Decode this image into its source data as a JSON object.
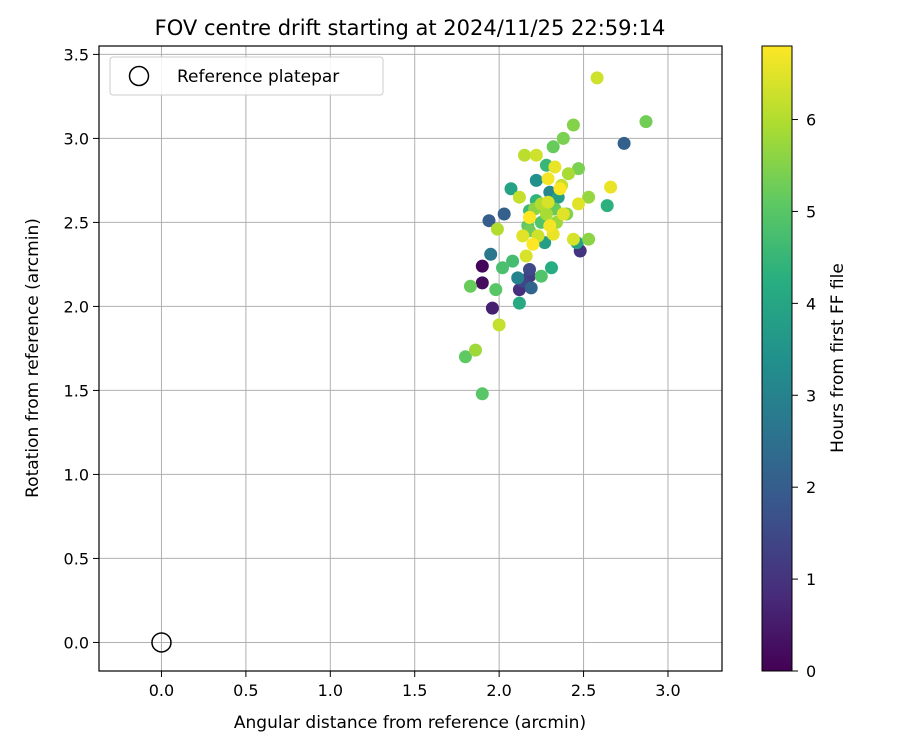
{
  "chart_data": {
    "type": "scatter",
    "title": "FOV centre drift starting at 2024/11/25 22:59:14",
    "xlabel": "Angular distance from reference (arcmin)",
    "ylabel": "Rotation from reference (arcmin)",
    "xlim": [
      -0.37,
      3.32
    ],
    "ylim": [
      -0.17,
      3.55
    ],
    "xticks": [
      "0.0",
      "0.5",
      "1.0",
      "1.5",
      "2.0",
      "2.5",
      "3.0"
    ],
    "yticks": [
      "0.0",
      "0.5",
      "1.0",
      "1.5",
      "2.0",
      "2.5",
      "3.0",
      "3.5"
    ],
    "grid": true,
    "colormap": "viridis",
    "colorbar": {
      "label": "Hours from first FF file",
      "range": [
        0,
        6.8
      ],
      "ticks": [
        "0",
        "1",
        "2",
        "3",
        "4",
        "5",
        "6"
      ]
    },
    "legend": {
      "placement": "top-left",
      "entries": [
        {
          "name": "Reference platepar",
          "marker": "hollow-circle"
        }
      ]
    },
    "reference_point": {
      "x": 0.0,
      "y": 0.0
    },
    "points": [
      {
        "x": 1.9,
        "y": 2.24,
        "c": 0.1
      },
      {
        "x": 1.9,
        "y": 2.14,
        "c": 0.2
      },
      {
        "x": 1.96,
        "y": 1.99,
        "c": 0.6
      },
      {
        "x": 2.12,
        "y": 2.1,
        "c": 0.9
      },
      {
        "x": 2.18,
        "y": 2.18,
        "c": 1.2
      },
      {
        "x": 2.48,
        "y": 2.33,
        "c": 1.0
      },
      {
        "x": 2.18,
        "y": 2.22,
        "c": 1.5
      },
      {
        "x": 2.14,
        "y": 2.15,
        "c": 1.4
      },
      {
        "x": 1.94,
        "y": 2.51,
        "c": 2.0
      },
      {
        "x": 2.03,
        "y": 2.55,
        "c": 2.1
      },
      {
        "x": 2.74,
        "y": 2.97,
        "c": 2.1
      },
      {
        "x": 1.95,
        "y": 2.31,
        "c": 2.7
      },
      {
        "x": 2.19,
        "y": 2.11,
        "c": 2.2
      },
      {
        "x": 2.11,
        "y": 2.17,
        "c": 3.0
      },
      {
        "x": 2.22,
        "y": 2.75,
        "c": 3.4
      },
      {
        "x": 2.3,
        "y": 2.68,
        "c": 3.1
      },
      {
        "x": 2.26,
        "y": 2.6,
        "c": 3.6
      },
      {
        "x": 2.35,
        "y": 2.65,
        "c": 3.8
      },
      {
        "x": 2.07,
        "y": 2.7,
        "c": 3.9
      },
      {
        "x": 2.12,
        "y": 2.02,
        "c": 4.1
      },
      {
        "x": 2.27,
        "y": 2.38,
        "c": 3.8
      },
      {
        "x": 2.31,
        "y": 2.23,
        "c": 4.2
      },
      {
        "x": 2.46,
        "y": 2.38,
        "c": 3.9
      },
      {
        "x": 2.64,
        "y": 2.6,
        "c": 4.3
      },
      {
        "x": 2.22,
        "y": 2.63,
        "c": 4.4
      },
      {
        "x": 2.28,
        "y": 2.84,
        "c": 4.5
      },
      {
        "x": 2.18,
        "y": 2.57,
        "c": 4.6
      },
      {
        "x": 2.08,
        "y": 2.27,
        "c": 4.7
      },
      {
        "x": 2.02,
        "y": 2.23,
        "c": 4.8
      },
      {
        "x": 2.25,
        "y": 2.18,
        "c": 4.9
      },
      {
        "x": 1.9,
        "y": 1.48,
        "c": 5.0
      },
      {
        "x": 1.8,
        "y": 1.7,
        "c": 5.1
      },
      {
        "x": 1.83,
        "y": 2.12,
        "c": 5.2
      },
      {
        "x": 1.98,
        "y": 2.1,
        "c": 5.0
      },
      {
        "x": 2.18,
        "y": 2.45,
        "c": 5.3
      },
      {
        "x": 2.32,
        "y": 2.95,
        "c": 5.2
      },
      {
        "x": 2.38,
        "y": 3.0,
        "c": 5.4
      },
      {
        "x": 2.44,
        "y": 3.08,
        "c": 5.5
      },
      {
        "x": 2.87,
        "y": 3.1,
        "c": 5.3
      },
      {
        "x": 2.47,
        "y": 2.82,
        "c": 5.4
      },
      {
        "x": 2.53,
        "y": 2.4,
        "c": 5.6
      },
      {
        "x": 2.53,
        "y": 2.65,
        "c": 5.7
      },
      {
        "x": 2.4,
        "y": 2.55,
        "c": 5.5
      },
      {
        "x": 2.34,
        "y": 2.5,
        "c": 5.8
      },
      {
        "x": 2.28,
        "y": 2.55,
        "c": 5.9
      },
      {
        "x": 1.86,
        "y": 1.74,
        "c": 5.8
      },
      {
        "x": 2.0,
        "y": 1.89,
        "c": 6.2
      },
      {
        "x": 1.99,
        "y": 2.46,
        "c": 6.0
      },
      {
        "x": 2.15,
        "y": 2.9,
        "c": 6.1
      },
      {
        "x": 2.22,
        "y": 2.9,
        "c": 6.3
      },
      {
        "x": 2.12,
        "y": 2.65,
        "c": 6.2
      },
      {
        "x": 2.16,
        "y": 2.3,
        "c": 6.4
      },
      {
        "x": 2.14,
        "y": 2.42,
        "c": 6.5
      },
      {
        "x": 2.23,
        "y": 2.42,
        "c": 6.3
      },
      {
        "x": 2.32,
        "y": 2.43,
        "c": 6.6
      },
      {
        "x": 2.3,
        "y": 2.48,
        "c": 6.7
      },
      {
        "x": 2.38,
        "y": 2.55,
        "c": 6.5
      },
      {
        "x": 2.36,
        "y": 2.7,
        "c": 6.8
      },
      {
        "x": 2.29,
        "y": 2.76,
        "c": 6.7
      },
      {
        "x": 2.33,
        "y": 2.83,
        "c": 6.6
      },
      {
        "x": 2.44,
        "y": 2.4,
        "c": 6.4
      },
      {
        "x": 2.47,
        "y": 2.61,
        "c": 6.5
      },
      {
        "x": 2.58,
        "y": 3.36,
        "c": 6.3
      },
      {
        "x": 2.66,
        "y": 2.71,
        "c": 6.6
      },
      {
        "x": 2.18,
        "y": 2.53,
        "c": 6.9
      },
      {
        "x": 2.2,
        "y": 2.37,
        "c": 6.8
      },
      {
        "x": 2.25,
        "y": 2.61,
        "c": 6.0
      },
      {
        "x": 2.41,
        "y": 2.79,
        "c": 5.9
      },
      {
        "x": 2.37,
        "y": 2.72,
        "c": 6.2
      },
      {
        "x": 2.29,
        "y": 2.62,
        "c": 6.4
      },
      {
        "x": 2.21,
        "y": 2.58,
        "c": 5.6
      },
      {
        "x": 2.33,
        "y": 2.58,
        "c": 5.2
      },
      {
        "x": 2.25,
        "y": 2.5,
        "c": 4.9
      },
      {
        "x": 2.17,
        "y": 2.48,
        "c": 5.1
      }
    ]
  }
}
